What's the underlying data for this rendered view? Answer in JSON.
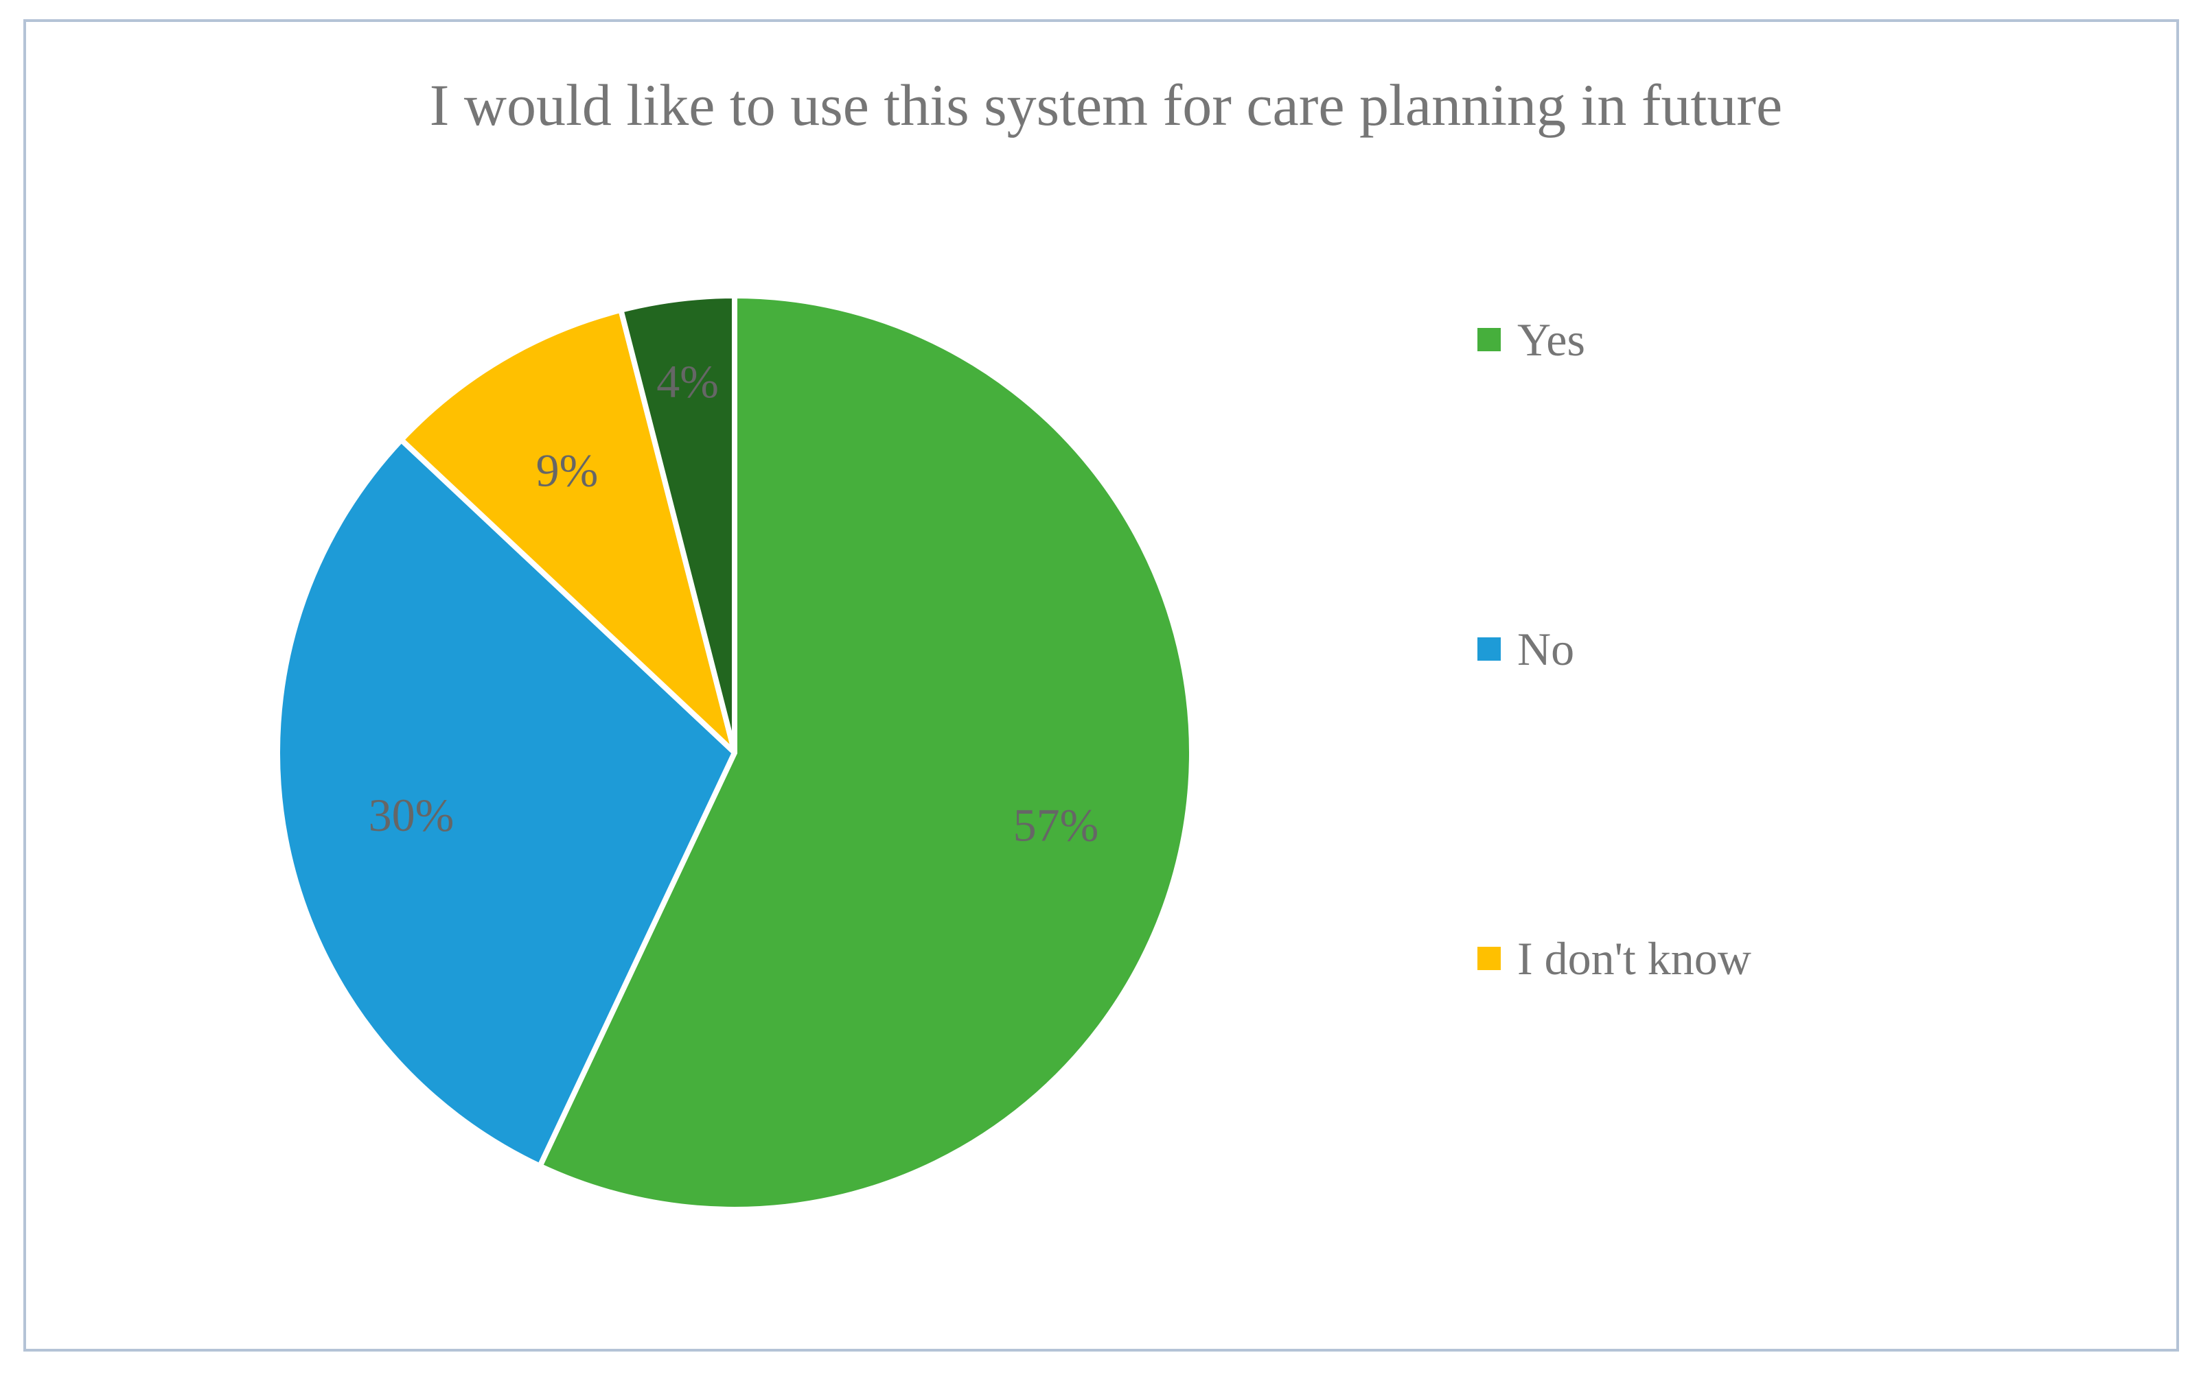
{
  "chart_data": {
    "type": "pie",
    "title": "I would like to use this system for care planning in future",
    "categories": [
      "Yes",
      "No",
      "I don't know",
      ""
    ],
    "values": [
      57,
      30,
      9,
      4
    ],
    "value_labels": [
      "57%",
      "30%",
      "9%",
      "4%"
    ],
    "colors": [
      "#46AF3C",
      "#1E9BD7",
      "#FFC000",
      "#22661F"
    ],
    "legend": {
      "position": "right",
      "entries": [
        "Yes",
        "No",
        "I don't know"
      ]
    }
  }
}
